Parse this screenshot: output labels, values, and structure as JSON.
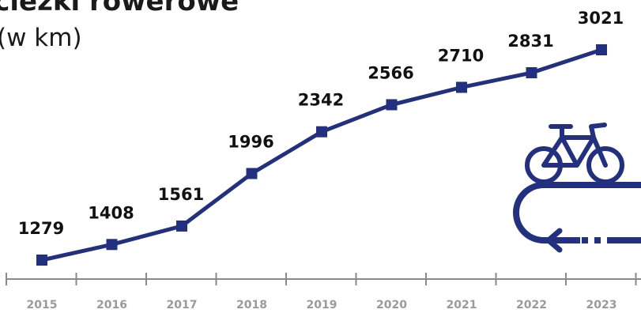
{
  "colors": {
    "series": "#233080",
    "label": "#111111",
    "tick_label": "#9a9a9a",
    "axis": "#8a8a8a"
  },
  "icon": "bicycle-path-icon",
  "chart_data": {
    "type": "line",
    "title": "ścieżki rowerowe",
    "subtitle": "(w km)",
    "xlabel": "",
    "ylabel": "",
    "categories": [
      "2015",
      "2016",
      "2017",
      "2018",
      "2019",
      "2020",
      "2021",
      "2022",
      "2023"
    ],
    "series": [
      {
        "values": [
          1279,
          1408,
          1561,
          1996,
          2342,
          2566,
          2710,
          2831,
          3021
        ],
        "labels": [
          "1279",
          "1408",
          "1561",
          "1996",
          "2342",
          "2566",
          "2710",
          "2831",
          "3021"
        ]
      }
    ],
    "grid": false,
    "legend": "none",
    "markers": "square",
    "data_labels": true
  }
}
